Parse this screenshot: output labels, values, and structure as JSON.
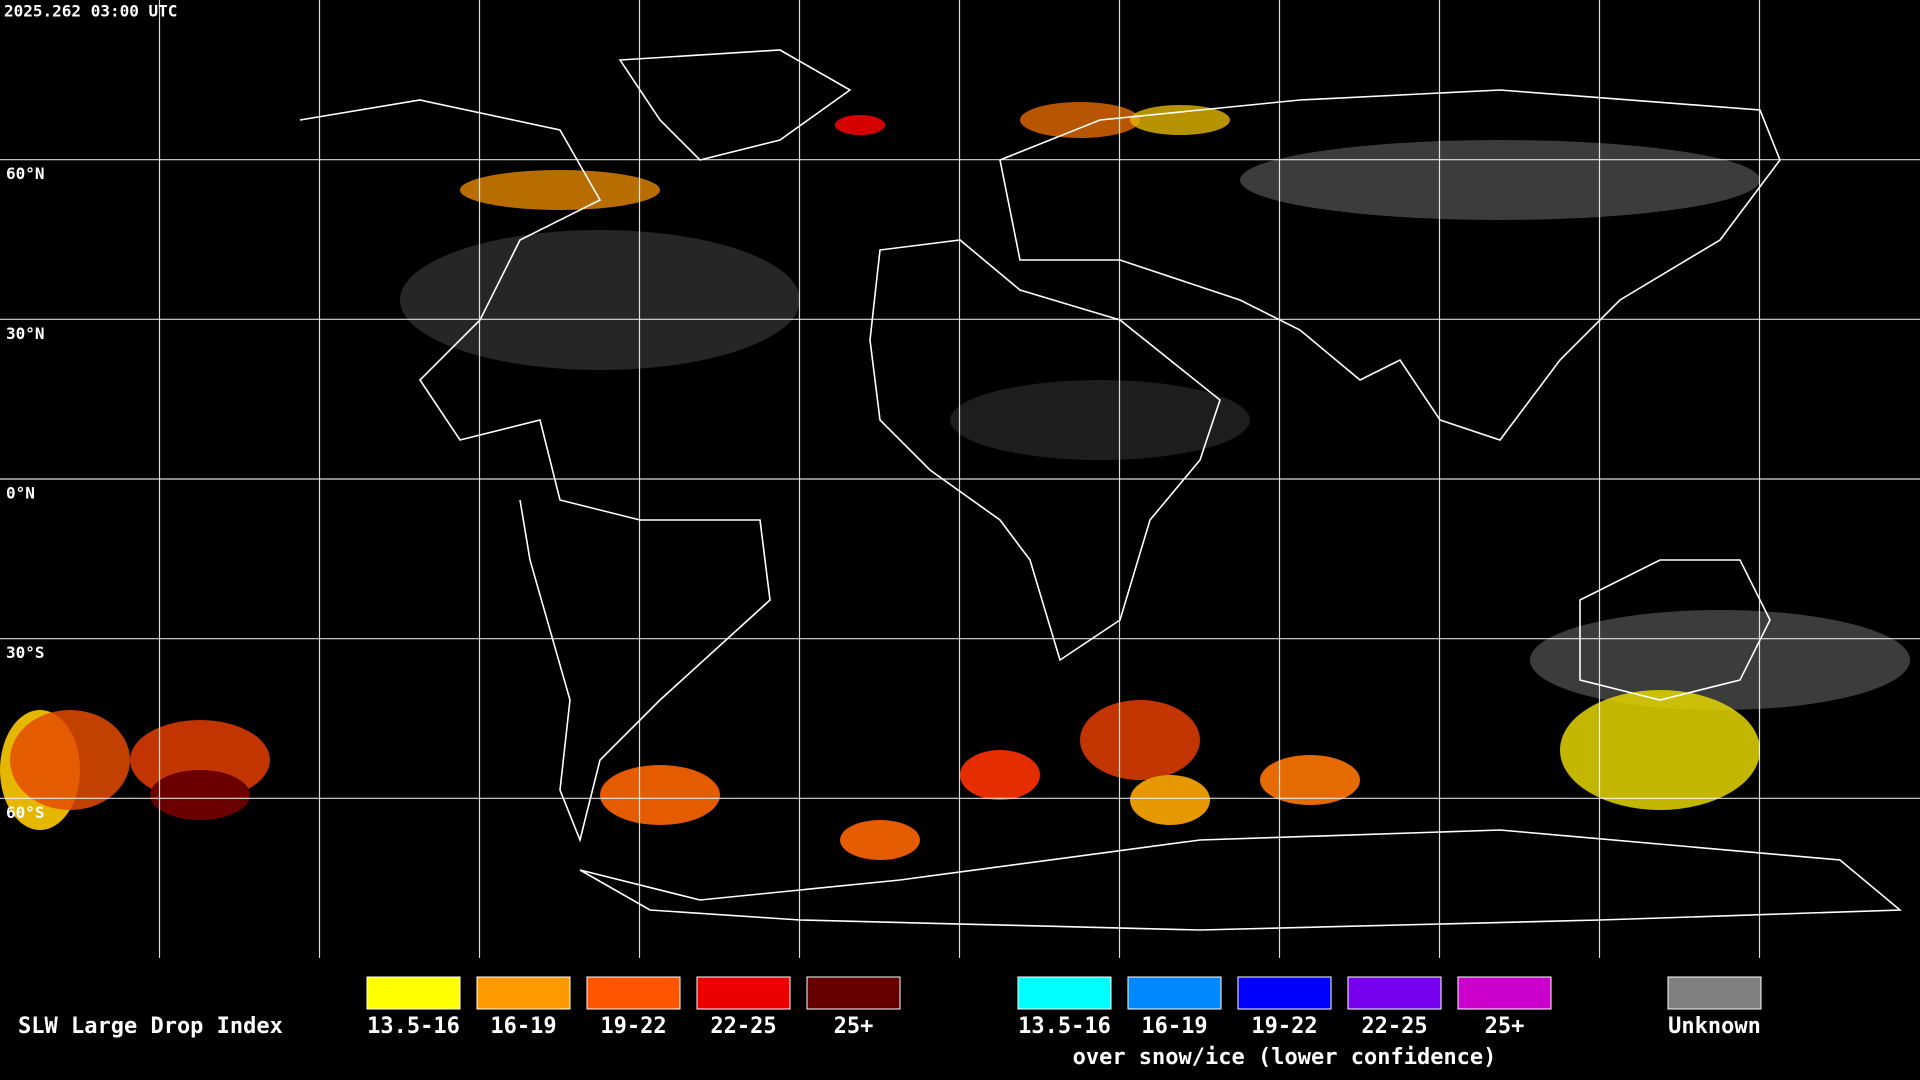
{
  "header": {
    "timestamp": "2025.262 03:00 UTC"
  },
  "map": {
    "latitude_labels": [
      "60°N",
      "30°N",
      "0°N",
      "30°S",
      "60°S"
    ]
  },
  "legend": {
    "title": "SLW Large Drop Index",
    "groups": [
      {
        "items": [
          {
            "label": "13.5-16",
            "color": "#ffff00"
          },
          {
            "label": "16-19",
            "color": "#ff9900"
          },
          {
            "label": "19-22",
            "color": "#ff5500"
          },
          {
            "label": "22-25",
            "color": "#ee0000"
          },
          {
            "label": "25+",
            "color": "#660000"
          }
        ]
      },
      {
        "items": [
          {
            "label": "13.5-16",
            "color": "#00ffff"
          },
          {
            "label": "16-19",
            "color": "#0088ff"
          },
          {
            "label": "19-22",
            "color": "#0000ff"
          },
          {
            "label": "22-25",
            "color": "#7700ee"
          },
          {
            "label": "25+",
            "color": "#cc00cc"
          }
        ],
        "caption": "over snow/ice (lower confidence)"
      }
    ],
    "unknown": {
      "label": "Unknown",
      "color": "#808080"
    }
  }
}
